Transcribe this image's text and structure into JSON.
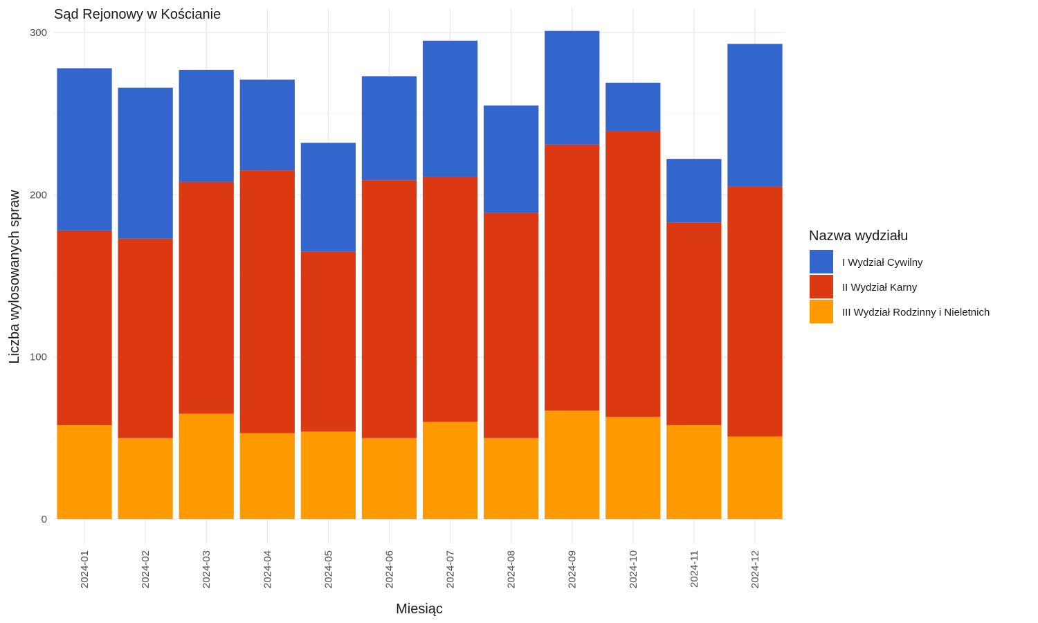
{
  "chart_data": {
    "type": "bar",
    "stacked": true,
    "title": "Sąd Rejonowy w Kościanie",
    "xlabel": "Miesiąc",
    "ylabel": "Liczba wylosowanych spraw",
    "ylim": [
      0,
      300
    ],
    "y_ticks": [
      0,
      100,
      200,
      300
    ],
    "grid": true,
    "legend": {
      "title": "Nazwa wydziału",
      "position": "right"
    },
    "categories": [
      "2024-01",
      "2024-02",
      "2024-03",
      "2024-04",
      "2024-05",
      "2024-06",
      "2024-07",
      "2024-08",
      "2024-09",
      "2024-10",
      "2024-11",
      "2024-12"
    ],
    "series": [
      {
        "name": "III Wydział Rodzinny i Nieletnich",
        "color": "#ff9900",
        "values": [
          58,
          50,
          65,
          53,
          54,
          50,
          60,
          50,
          67,
          63,
          58,
          51
        ]
      },
      {
        "name": "II Wydział Karny",
        "color": "#dc3912",
        "values": [
          120,
          123,
          143,
          162,
          111,
          159,
          151,
          139,
          164,
          176,
          125,
          154
        ]
      },
      {
        "name": "I Wydział Cywilny",
        "color": "#3366cc",
        "values": [
          100,
          93,
          69,
          56,
          67,
          64,
          84,
          66,
          70,
          30,
          39,
          88
        ]
      }
    ],
    "legend_order": [
      "I Wydział Cywilny",
      "II Wydział Karny",
      "III Wydział Rodzinny i Nieletnich"
    ]
  }
}
